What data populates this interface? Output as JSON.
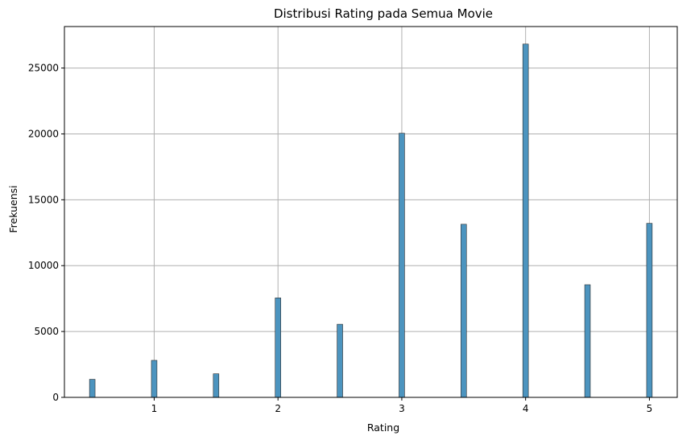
{
  "chart_data": {
    "type": "bar",
    "title": "Distribusi Rating pada Semua Movie",
    "xlabel": "Rating",
    "ylabel": "Frekuensi",
    "x": [
      0.5,
      1,
      1.5,
      2,
      2.5,
      3,
      3.5,
      4,
      4.5,
      5
    ],
    "values": [
      1370,
      2810,
      1790,
      7550,
      5550,
      20050,
      13140,
      26820,
      8550,
      13210
    ],
    "xlim": [
      0.275,
      5.225
    ],
    "ylim": [
      0,
      28150
    ],
    "xticks": [
      "1",
      "2",
      "3",
      "4",
      "5"
    ],
    "yticks": [
      "0",
      "5000",
      "10000",
      "15000",
      "20000",
      "25000"
    ],
    "grid": true,
    "bar_color": "#4c94bf"
  }
}
